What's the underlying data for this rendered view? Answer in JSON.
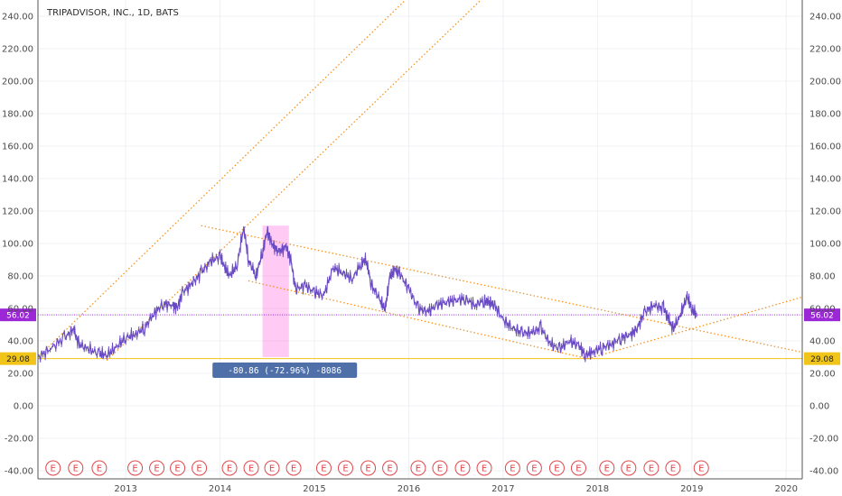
{
  "chart_data": {
    "type": "line",
    "title": "TRIPADVISOR, INC., 1D, BATS",
    "ylim": [
      -45,
      250
    ],
    "y_ticks": [
      -40,
      -20,
      0,
      20,
      40,
      60,
      80,
      100,
      120,
      140,
      160,
      180,
      200,
      220,
      240
    ],
    "y_tick_labels": [
      "-40.00",
      "-20.00",
      "0.00",
      "20.00",
      "40.00",
      "60.00",
      "80.00",
      "100.00",
      "120.00",
      "140.00",
      "160.00",
      "180.00",
      "200.00",
      "220.00",
      "240.00"
    ],
    "x_ticks": [
      2013,
      2014,
      2015,
      2016,
      2017,
      2018,
      2019,
      2020
    ],
    "x_tick_labels": [
      "2013",
      "2014",
      "2015",
      "2016",
      "2017",
      "2018",
      "2019",
      "2020"
    ],
    "xlim": [
      2012.07,
      2020.17
    ],
    "grid": true,
    "series": [
      {
        "color": "#6a4bc4",
        "x": [
          2012.07,
          2012.2,
          2012.35,
          2012.45,
          2012.5,
          2012.6,
          2012.72,
          2012.8,
          2012.9,
          2013.0,
          2013.1,
          2013.2,
          2013.3,
          2013.4,
          2013.5,
          2013.55,
          2013.6,
          2013.7,
          2013.8,
          2013.9,
          2014.0,
          2014.05,
          2014.1,
          2014.18,
          2014.25,
          2014.3,
          2014.38,
          2014.45,
          2014.5,
          2014.55,
          2014.62,
          2014.7,
          2014.75,
          2014.8,
          2014.9,
          2015.0,
          2015.1,
          2015.2,
          2015.3,
          2015.4,
          2015.5,
          2015.55,
          2015.6,
          2015.7,
          2015.75,
          2015.8,
          2015.85,
          2015.9,
          2016.0,
          2016.1,
          2016.2,
          2016.3,
          2016.4,
          2016.5,
          2016.6,
          2016.7,
          2016.8,
          2016.85,
          2016.9,
          2017.0,
          2017.1,
          2017.2,
          2017.3,
          2017.4,
          2017.5,
          2017.6,
          2017.7,
          2017.8,
          2017.87,
          2017.95,
          2018.05,
          2018.15,
          2018.25,
          2018.35,
          2018.42,
          2018.5,
          2018.6,
          2018.7,
          2018.75,
          2018.8,
          2018.88,
          2018.95,
          2019.0,
          2019.05
        ],
        "y": [
          30,
          35,
          42,
          47,
          38,
          35,
          32,
          31,
          36,
          42,
          44,
          48,
          57,
          63,
          62,
          61,
          70,
          75,
          82,
          89,
          92,
          85,
          80,
          86,
          110,
          90,
          80,
          95,
          108,
          100,
          95,
          98,
          90,
          72,
          74,
          70,
          68,
          85,
          82,
          78,
          88,
          90,
          75,
          65,
          60,
          80,
          84,
          82,
          72,
          60,
          58,
          62,
          64,
          65,
          66,
          62,
          65,
          64,
          63,
          53,
          48,
          45,
          45,
          48,
          38,
          35,
          40,
          37,
          31,
          33,
          36,
          38,
          42,
          44,
          48,
          58,
          62,
          60,
          54,
          47,
          56,
          67,
          59,
          56
        ]
      }
    ],
    "price_labels": [
      {
        "value": 56.02,
        "text": "56.02",
        "color": "#9c27d6"
      },
      {
        "value": 29.08,
        "text": "29.08",
        "color": "#f0c419"
      }
    ],
    "trendlines": [
      {
        "x1": 2012.07,
        "y1": 30,
        "x2": 2016.0,
        "y2": 252,
        "color": "#f7931e"
      },
      {
        "x1": 2012.8,
        "y1": 28,
        "x2": 2016.8,
        "y2": 252,
        "color": "#f7931e"
      },
      {
        "x1": 2013.8,
        "y1": 111,
        "x2": 2020.17,
        "y2": 33,
        "color": "#f7931e"
      },
      {
        "x1": 2014.3,
        "y1": 77,
        "x2": 2017.9,
        "y2": 29,
        "color": "#f7931e"
      },
      {
        "x1": 2017.9,
        "y1": 29,
        "x2": 2020.17,
        "y2": 67,
        "color": "#f7931e"
      }
    ],
    "measure": {
      "x_start": 2014.45,
      "x_end": 2014.73,
      "y_low": 30,
      "y_high": 111,
      "label": "-80.86 (-72.96%) -8086"
    },
    "earnings_marker_label": "E",
    "earnings_x": [
      2012.23,
      2012.47,
      2012.72,
      2013.1,
      2013.33,
      2013.55,
      2013.78,
      2014.1,
      2014.33,
      2014.55,
      2014.78,
      2015.1,
      2015.33,
      2015.57,
      2015.8,
      2016.1,
      2016.33,
      2016.57,
      2016.8,
      2017.1,
      2017.33,
      2017.57,
      2017.8,
      2018.1,
      2018.33,
      2018.57,
      2018.8,
      2019.1
    ]
  }
}
